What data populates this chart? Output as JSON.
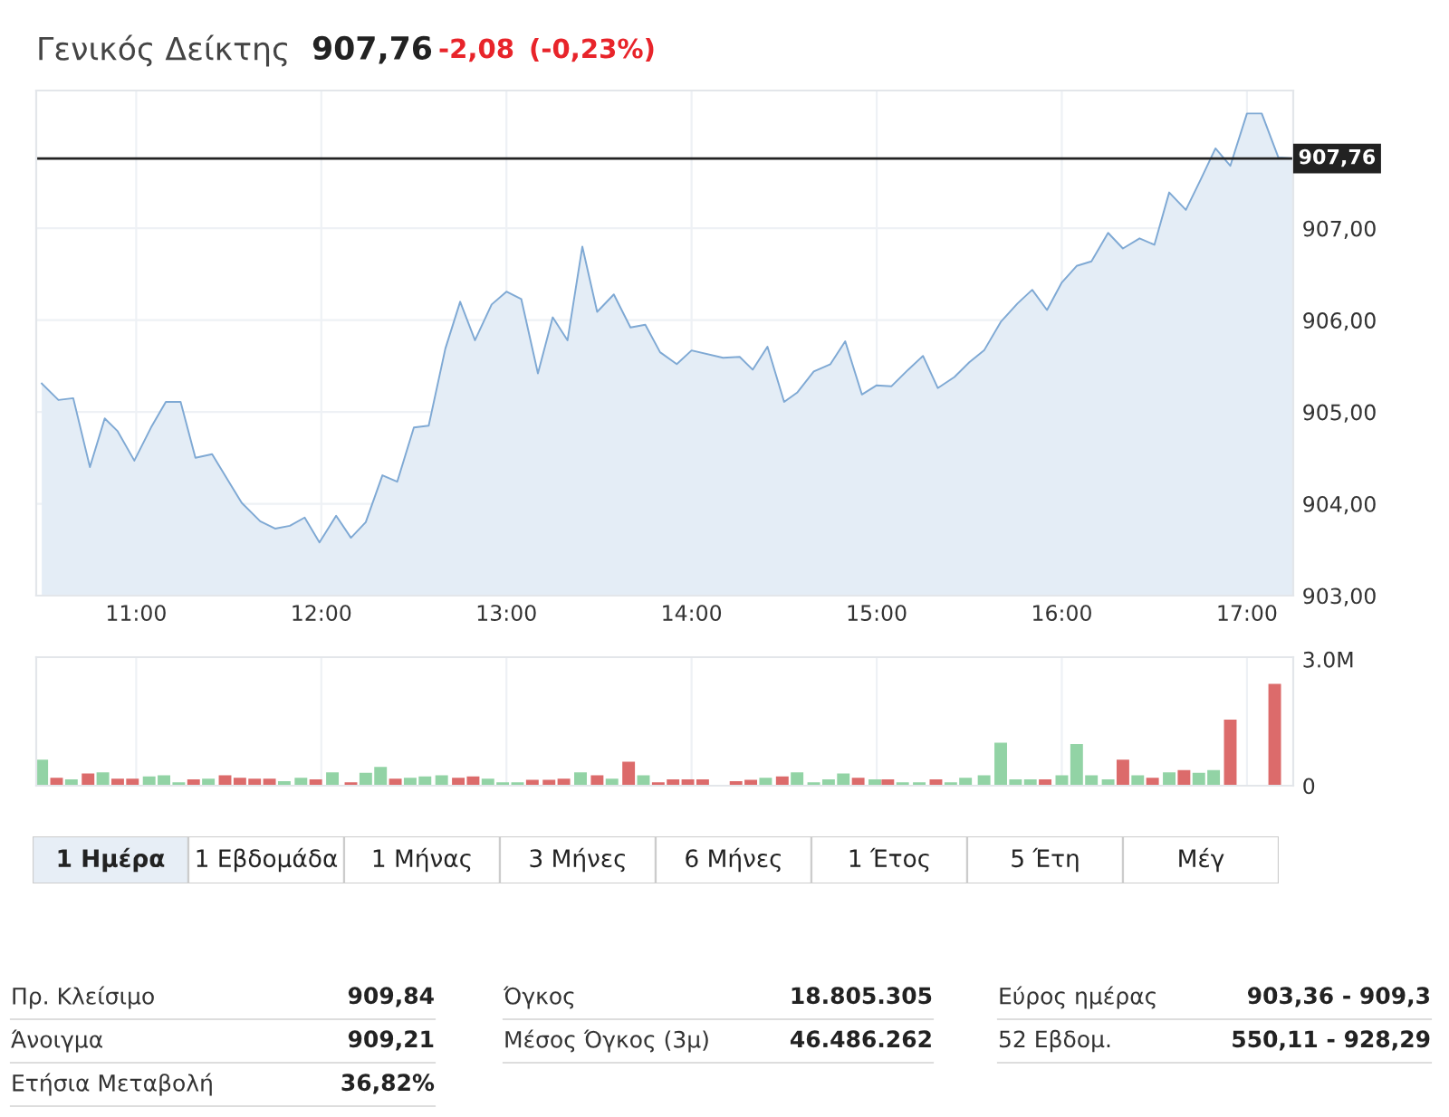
{
  "chart_data": [
    {
      "type": "area",
      "title": "Γενικός Δείκτης",
      "subtitle": "907,76",
      "annotations": [
        "-2,08",
        "(-0,23%)"
      ],
      "x": [
        10.49,
        10.58,
        10.66,
        10.75,
        10.83,
        10.9,
        10.99,
        11.08,
        11.16,
        11.24,
        11.32,
        11.41,
        11.57,
        11.67,
        11.75,
        11.83,
        11.91,
        11.99,
        12.08,
        12.16,
        12.24,
        12.33,
        12.41,
        12.5,
        12.58,
        12.67,
        12.75,
        12.83,
        12.92,
        13.0,
        13.08,
        13.17,
        13.25,
        13.33,
        13.41,
        13.49,
        13.58,
        13.67,
        13.75,
        13.83,
        13.92,
        14.0,
        14.17,
        14.26,
        14.33,
        14.41,
        14.5,
        14.57,
        14.66,
        14.75,
        14.83,
        14.92,
        15.0,
        15.08,
        15.17,
        15.25,
        15.33,
        15.42,
        15.5,
        15.58,
        15.67,
        15.76,
        15.84,
        15.92,
        16.0,
        16.08,
        16.16,
        16.25,
        16.33,
        16.42,
        16.5,
        16.58,
        16.67,
        16.75,
        16.83,
        16.91,
        17.0,
        17.08,
        17.17,
        17.25
      ],
      "series": [
        {
          "color": "#7fa9d4",
          "values": [
            905.31,
            905.13,
            905.15,
            904.4,
            904.93,
            904.79,
            904.47,
            904.83,
            905.11,
            905.11,
            904.5,
            904.54,
            904.01,
            903.81,
            903.73,
            903.76,
            903.85,
            903.58,
            903.87,
            903.63,
            903.8,
            904.31,
            904.24,
            904.83,
            904.85,
            905.69,
            906.2,
            905.78,
            906.17,
            906.31,
            906.23,
            905.42,
            906.03,
            905.78,
            906.8,
            906.09,
            906.28,
            905.92,
            905.95,
            905.65,
            905.52,
            905.67,
            905.59,
            905.6,
            905.46,
            905.71,
            905.11,
            905.21,
            905.44,
            905.52,
            905.77,
            905.19,
            905.29,
            905.28,
            905.46,
            905.61,
            905.26,
            905.38,
            905.54,
            905.67,
            905.98,
            906.18,
            906.33,
            906.11,
            906.41,
            906.59,
            906.64,
            906.95,
            906.78,
            906.89,
            906.82,
            907.39,
            907.2,
            907.53,
            907.87,
            907.68,
            908.25,
            908.25,
            907.77,
            907.76
          ]
        }
      ],
      "xlim": [
        10.46,
        17.25
      ],
      "ylim": [
        903,
        908.5
      ],
      "xticks": [
        {
          "value": 11,
          "label": "11:00"
        },
        {
          "value": 12,
          "label": "12:00"
        },
        {
          "value": 13,
          "label": "13:00"
        },
        {
          "value": 14,
          "label": "14:00"
        },
        {
          "value": 15,
          "label": "15:00"
        },
        {
          "value": 16,
          "label": "16:00"
        },
        {
          "value": 17,
          "label": "17:00"
        }
      ],
      "yticks": [
        {
          "value": 903,
          "label": "903,00"
        },
        {
          "value": 904,
          "label": "904,00"
        },
        {
          "value": 905,
          "label": "905,00"
        },
        {
          "value": 906,
          "label": "906,00"
        },
        {
          "value": 907,
          "label": "907,00"
        }
      ],
      "ref_lines": [
        {
          "axis": "y",
          "value": 907.76,
          "label": "907,76",
          "color": "#222222"
        }
      ],
      "grid": true
    },
    {
      "type": "bar",
      "tick_labels": "y",
      "x": [
        10.49,
        10.57,
        10.65,
        10.74,
        10.82,
        10.9,
        10.98,
        11.07,
        11.15,
        11.23,
        11.31,
        11.39,
        11.48,
        11.56,
        11.64,
        11.72,
        11.8,
        11.89,
        11.97,
        12.06,
        12.16,
        12.24,
        12.32,
        12.4,
        12.48,
        12.56,
        12.65,
        12.74,
        12.82,
        12.9,
        12.98,
        13.06,
        13.14,
        13.23,
        13.31,
        13.4,
        13.49,
        13.57,
        13.66,
        13.74,
        13.82,
        13.9,
        13.98,
        14.06,
        14.24,
        14.32,
        14.4,
        14.49,
        14.57,
        14.66,
        14.74,
        14.82,
        14.9,
        14.99,
        15.06,
        15.14,
        15.23,
        15.32,
        15.4,
        15.48,
        15.58,
        15.67,
        15.75,
        15.83,
        15.91,
        16.0,
        16.08,
        16.16,
        16.25,
        16.33,
        16.41,
        16.49,
        16.58,
        16.66,
        16.74,
        16.82,
        16.91,
        17.15
      ],
      "values": [
        0.6,
        0.17,
        0.13,
        0.27,
        0.3,
        0.15,
        0.15,
        0.2,
        0.23,
        0.06,
        0.13,
        0.15,
        0.23,
        0.17,
        0.15,
        0.15,
        0.09,
        0.17,
        0.13,
        0.3,
        0.06,
        0.29,
        0.43,
        0.15,
        0.17,
        0.2,
        0.23,
        0.17,
        0.2,
        0.15,
        0.06,
        0.06,
        0.12,
        0.12,
        0.15,
        0.3,
        0.23,
        0.15,
        0.55,
        0.23,
        0.06,
        0.13,
        0.13,
        0.13,
        0.09,
        0.12,
        0.17,
        0.2,
        0.3,
        0.06,
        0.13,
        0.27,
        0.17,
        0.13,
        0.13,
        0.06,
        0.06,
        0.13,
        0.06,
        0.17,
        0.23,
        1.0,
        0.13,
        0.13,
        0.13,
        0.23,
        0.97,
        0.23,
        0.13,
        0.6,
        0.23,
        0.17,
        0.3,
        0.35,
        0.29,
        0.35,
        1.55,
        2.4
      ],
      "colors": [
        "#92d3a5",
        "#dc6b6b",
        "#92d3a5",
        "#dc6b6b",
        "#92d3a5",
        "#dc6b6b",
        "#dc6b6b",
        "#92d3a5",
        "#92d3a5",
        "#92d3a5",
        "#dc6b6b",
        "#92d3a5",
        "#dc6b6b",
        "#dc6b6b",
        "#dc6b6b",
        "#dc6b6b",
        "#92d3a5",
        "#92d3a5",
        "#dc6b6b",
        "#92d3a5",
        "#dc6b6b",
        "#92d3a5",
        "#92d3a5",
        "#dc6b6b",
        "#92d3a5",
        "#92d3a5",
        "#92d3a5",
        "#dc6b6b",
        "#dc6b6b",
        "#92d3a5",
        "#92d3a5",
        "#92d3a5",
        "#dc6b6b",
        "#dc6b6b",
        "#dc6b6b",
        "#92d3a5",
        "#dc6b6b",
        "#92d3a5",
        "#dc6b6b",
        "#92d3a5",
        "#dc6b6b",
        "#dc6b6b",
        "#dc6b6b",
        "#dc6b6b",
        "#dc6b6b",
        "#dc6b6b",
        "#92d3a5",
        "#dc6b6b",
        "#92d3a5",
        "#92d3a5",
        "#92d3a5",
        "#92d3a5",
        "#dc6b6b",
        "#92d3a5",
        "#dc6b6b",
        "#92d3a5",
        "#92d3a5",
        "#dc6b6b",
        "#92d3a5",
        "#92d3a5",
        "#92d3a5",
        "#92d3a5",
        "#92d3a5",
        "#92d3a5",
        "#dc6b6b",
        "#92d3a5",
        "#92d3a5",
        "#92d3a5",
        "#92d3a5",
        "#dc6b6b",
        "#92d3a5",
        "#dc6b6b",
        "#92d3a5",
        "#dc6b6b",
        "#92d3a5",
        "#92d3a5",
        "#dc6b6b",
        "#dc6b6b"
      ],
      "xlim": [
        10.46,
        17.25
      ],
      "ylim": [
        0,
        3.05
      ],
      "yticks": [
        0,
        {
          "value": 3,
          "label": "3.0M"
        }
      ],
      "grid": "x"
    },
    {
      "type": "other",
      "categories": [
        "1 Ημέρα",
        "1 Εβδομάδα",
        "1 Μήνας",
        "3 Μήνες",
        "6 Μήνες",
        "1 Έτος",
        "5 Έτη",
        "Μέγ"
      ]
    },
    {
      "type": "other",
      "categories": [
        "Πρ. Κλείσιμο",
        "Άνοιγμα",
        "Ετήσια Μεταβολή",
        "Όγκος",
        "Μέσος Όγκος (3μ)",
        "Εύρος ημέρας",
        "52 Εβδομ."
      ],
      "value_labels": [
        "909,84",
        "909,21",
        "36,82%",
        "18.805.305",
        "46.486.262",
        "903,36 - 909,3",
        "550,11 - 928,29"
      ]
    }
  ]
}
